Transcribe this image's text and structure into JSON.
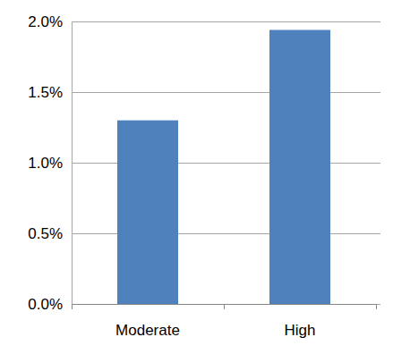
{
  "chart_data": {
    "type": "bar",
    "categories": [
      "Moderate",
      "High"
    ],
    "values": [
      1.3,
      1.94
    ],
    "color": "#4f81bd",
    "ylim": [
      0,
      2
    ],
    "yticks": [
      {
        "value": 0,
        "label": "0.0%"
      },
      {
        "value": 0.5,
        "label": "0.5%"
      },
      {
        "value": 1,
        "label": "1.0%"
      },
      {
        "value": 1.5,
        "label": "1.5%"
      },
      {
        "value": 2,
        "label": "2.0%"
      }
    ],
    "grid": true
  }
}
